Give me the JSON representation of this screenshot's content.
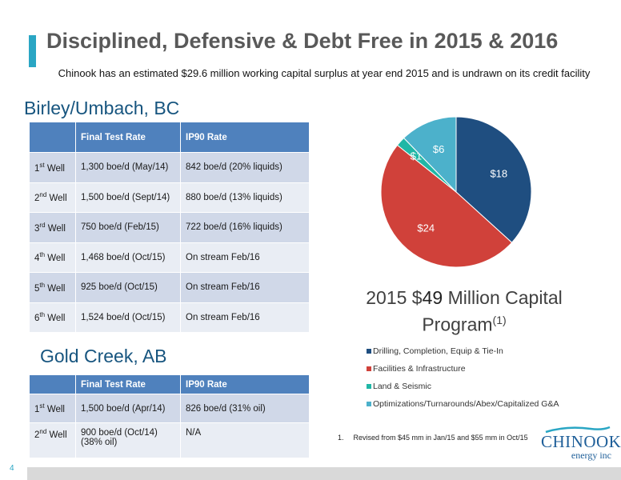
{
  "header": {
    "title": "Disciplined, Defensive & Debt Free in 2015 & 2016",
    "subtitle": "Chinook has an estimated $29.6 million working capital surplus at year end 2015 and is undrawn on its credit facility"
  },
  "birley": {
    "heading": "Birley/Umbach, BC",
    "columns": [
      "",
      "Final Test Rate",
      "IP90 Rate"
    ],
    "rows": [
      {
        "num": "1",
        "sup": "st",
        "well": "Well",
        "final": "1,300 boe/d (May/14)",
        "ip90": "842 boe/d (20% liquids)"
      },
      {
        "num": "2",
        "sup": "nd",
        "well": "Well",
        "final": "1,500 boe/d (Sept/14)",
        "ip90": "880 boe/d (13% liquids)"
      },
      {
        "num": "3",
        "sup": "rd",
        "well": "Well",
        "final": "750 boe/d (Feb/15)",
        "ip90": "722 boe/d (16% liquids)"
      },
      {
        "num": "4",
        "sup": "th",
        "well": "Well",
        "final": "1,468 boe/d (Oct/15)",
        "ip90": "On stream Feb/16"
      },
      {
        "num": "5",
        "sup": "th",
        "well": "Well",
        "final": "925 boe/d (Oct/15)",
        "ip90": "On stream Feb/16"
      },
      {
        "num": "6",
        "sup": "th",
        "well": "Well",
        "final": "1,524 boe/d (Oct/15)",
        "ip90": "On stream Feb/16"
      }
    ]
  },
  "gold": {
    "heading": "Gold Creek, AB",
    "columns": [
      "",
      "Final Test Rate",
      "IP90 Rate"
    ],
    "rows": [
      {
        "num": "1",
        "sup": "st",
        "well": "Well",
        "final": "1,500 boe/d (Apr/14)",
        "final2": "",
        "ip90": "826 boe/d (31% oil)"
      },
      {
        "num": "2",
        "sup": "nd",
        "well": "Well",
        "final": "900 boe/d (Oct/14)",
        "final2": "(38% oil)",
        "ip90": "N/A"
      }
    ]
  },
  "chart_data": {
    "type": "pie",
    "title_prefix": "2015 $",
    "title_number": "49",
    "title_suffix": " Million Capital",
    "title_line2": "Program",
    "title_sup": "(1)",
    "slices": [
      {
        "name": "Drilling, Completion, Equip & Tie-In",
        "value": 18,
        "label": "$18",
        "color": "#1f4e80"
      },
      {
        "name": "Facilities & Infrastructure",
        "value": 24,
        "label": "$24",
        "color": "#d0413a"
      },
      {
        "name": "Land & Seismic",
        "value": 1,
        "label": "$1",
        "color": "#20b7a6"
      },
      {
        "name": "Optimizations/Turnarounds/Abex/Capitalized G&A",
        "value": 6,
        "label": "$6",
        "color": "#4cb1cb"
      }
    ],
    "legend_position": "bottom"
  },
  "footnote": {
    "number": "1.",
    "text": "Revised from $45 mm in Jan/15 and $55 mm in Oct/15"
  },
  "logo": {
    "name": "CHINOOK",
    "sub": "energy inc"
  },
  "page_number": "4"
}
